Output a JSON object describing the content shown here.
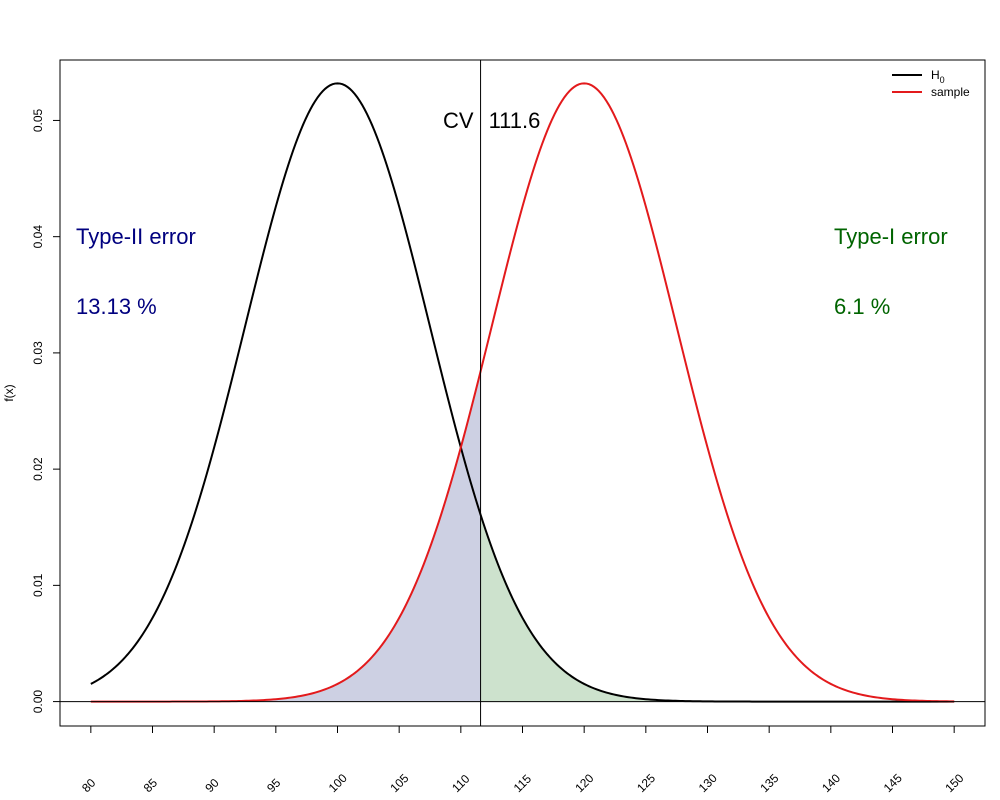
{
  "chart_data": {
    "type": "area",
    "title": "",
    "xlabel": "",
    "ylabel": "f(x)",
    "xlim": [
      77.5,
      152.5
    ],
    "ylim": [
      -0.0021,
      0.0552
    ],
    "x_ticks": [
      80,
      85,
      90,
      95,
      100,
      105,
      110,
      115,
      120,
      125,
      130,
      135,
      140,
      145,
      150
    ],
    "x_tick_labels": [
      "80",
      "85",
      "90",
      "95",
      "100",
      "105",
      "110",
      "115",
      "120",
      "125",
      "130",
      "135",
      "140",
      "145",
      "150"
    ],
    "y_ticks": [
      0,
      0.01,
      0.02,
      0.03,
      0.04,
      0.05
    ],
    "y_tick_labels": [
      "0.00",
      "0.01",
      "0.02",
      "0.03",
      "0.04",
      "0.05"
    ],
    "grid": false,
    "legend_position": "top-right",
    "series": [
      {
        "name": "H",
        "subscript": "0",
        "distribution": "normal",
        "mean": 100,
        "sd": 7.5,
        "x_range": [
          80,
          150
        ],
        "color": "#000000"
      },
      {
        "name": "sample",
        "distribution": "normal",
        "mean": 120,
        "sd": 7.5,
        "x_range": [
          80,
          150
        ],
        "color": "#e31a1c"
      }
    ],
    "critical_value": {
      "label": "CV",
      "value": "111.6",
      "x": 111.6
    },
    "regions": [
      {
        "kind": "type-II",
        "under": "sample",
        "x_from": 80,
        "x_to": 111.6,
        "color": "#cdd0e3"
      },
      {
        "kind": "type-I",
        "under": "H",
        "x_from": 111.6,
        "x_to": 150,
        "color": "#cde2cd"
      }
    ],
    "annotations": {
      "type2_label": "Type-II error",
      "type2_value": "13.13 %",
      "type2_color": "#00007f",
      "type1_label": "Type-I error",
      "type1_value": "6.1 %",
      "type1_color": "#006400"
    }
  }
}
